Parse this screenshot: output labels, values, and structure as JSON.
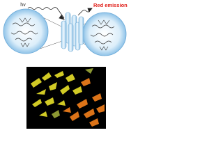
{
  "labels": {
    "excitation": "hv",
    "emission": "Red emission"
  }
}
